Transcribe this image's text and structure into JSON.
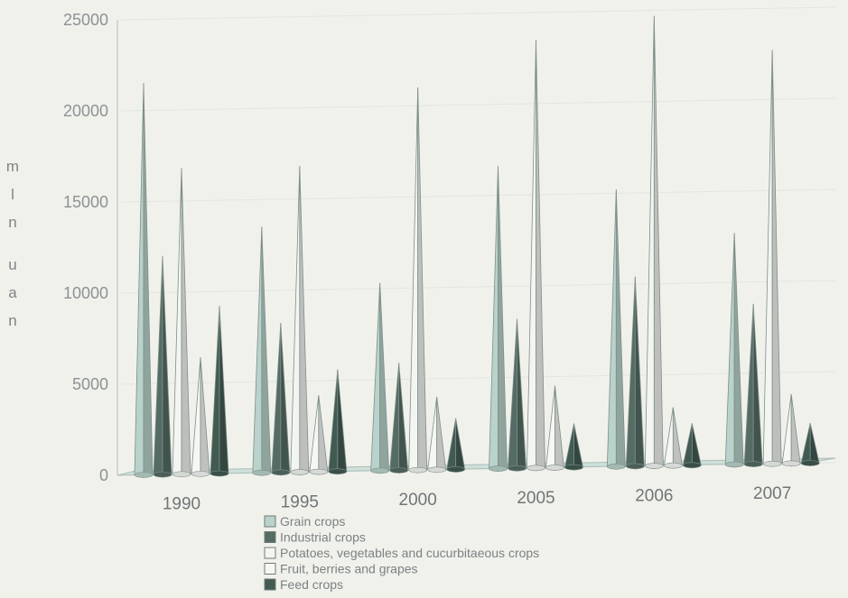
{
  "chart_data": {
    "type": "bar",
    "style": "3d-cone",
    "categories": [
      "1990",
      "1995",
      "2000",
      "2005",
      "2006",
      "2007"
    ],
    "ylabel": "mln uan",
    "ylim": [
      0,
      25000
    ],
    "yticks": [
      "0",
      "5000",
      "10000",
      "15000",
      "20000",
      "25000"
    ],
    "grid": true,
    "legend_position": "bottom",
    "series": [
      {
        "name": "Grain crops",
        "color": "#b9d2cb",
        "values": [
          21500,
          13500,
          10300,
          16600,
          15200,
          12700
        ]
      },
      {
        "name": "Industrial crops",
        "color": "#556c64",
        "values": [
          12000,
          8200,
          5900,
          8200,
          10400,
          8800
        ]
      },
      {
        "name": "Potatoes, vegetables and cucurbitaeous crops",
        "color": "#f3f5f1",
        "values": [
          16800,
          16800,
          21000,
          23500,
          24700,
          22700
        ]
      },
      {
        "name": "Fruit, berries and grapes",
        "color": "#f6f7f3",
        "values": [
          6400,
          4200,
          4000,
          4500,
          3200,
          3800
        ]
      },
      {
        "name": "Feed crops",
        "color": "#415a52",
        "values": [
          9200,
          5600,
          2800,
          2400,
          2300,
          2200
        ]
      }
    ]
  }
}
